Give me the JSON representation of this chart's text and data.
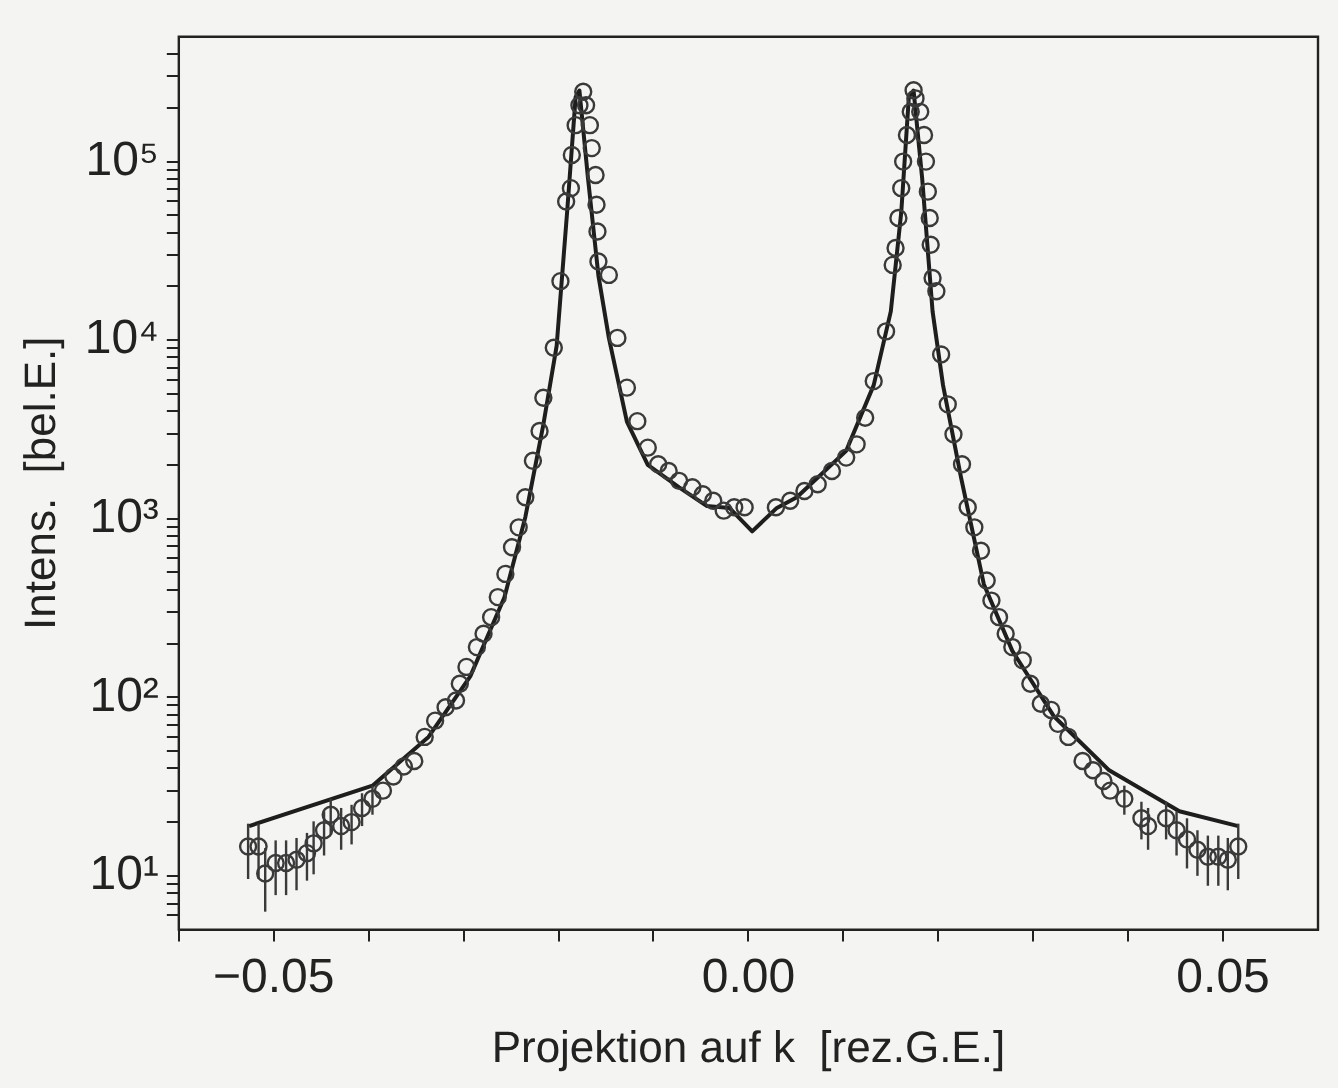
{
  "chart_data": {
    "type": "scatter",
    "xlabel": "Projektion auf k  [rez.G.E.]",
    "ylabel": "Intens.  [bel.E.]",
    "log": "y",
    "grid": false,
    "legend": false,
    "xlim": [
      -0.06,
      0.06
    ],
    "ylim": [
      5,
      500000
    ],
    "xticks": [
      {
        "value": -0.06,
        "label": null
      },
      {
        "value": -0.05,
        "label": "−0.05"
      },
      {
        "value": -0.04,
        "label": null
      },
      {
        "value": -0.03,
        "label": null
      },
      {
        "value": -0.02,
        "label": null
      },
      {
        "value": -0.01,
        "label": null
      },
      {
        "value": 0,
        "label": "0.00"
      },
      {
        "value": 0.01,
        "label": null
      },
      {
        "value": 0.02,
        "label": null
      },
      {
        "value": 0.03,
        "label": null
      },
      {
        "value": 0.04,
        "label": null
      },
      {
        "value": 0.05,
        "label": "0.05"
      }
    ],
    "yticks": [
      {
        "value": 6,
        "label": null
      },
      {
        "value": 7,
        "label": null
      },
      {
        "value": 8,
        "label": null
      },
      {
        "value": 9,
        "label": null
      },
      {
        "value": 10,
        "label": "10¹"
      },
      {
        "value": 20,
        "label": null
      },
      {
        "value": 30,
        "label": null
      },
      {
        "value": 40,
        "label": null
      },
      {
        "value": 50,
        "label": null
      },
      {
        "value": 60,
        "label": null
      },
      {
        "value": 70,
        "label": null
      },
      {
        "value": 80,
        "label": null
      },
      {
        "value": 90,
        "label": null
      },
      {
        "value": 100,
        "label": "10²"
      },
      {
        "value": 200,
        "label": null
      },
      {
        "value": 300,
        "label": null
      },
      {
        "value": 400,
        "label": null
      },
      {
        "value": 500,
        "label": null
      },
      {
        "value": 600,
        "label": null
      },
      {
        "value": 700,
        "label": null
      },
      {
        "value": 800,
        "label": null
      },
      {
        "value": 900,
        "label": null
      },
      {
        "value": 1000,
        "label": "10³"
      },
      {
        "value": 2000,
        "label": null
      },
      {
        "value": 3000,
        "label": null
      },
      {
        "value": 4000,
        "label": null
      },
      {
        "value": 5000,
        "label": null
      },
      {
        "value": 6000,
        "label": null
      },
      {
        "value": 7000,
        "label": null
      },
      {
        "value": 8000,
        "label": null
      },
      {
        "value": 9000,
        "label": null
      },
      {
        "value": 10000,
        "label": "10⁴"
      },
      {
        "value": 20000,
        "label": null
      },
      {
        "value": 30000,
        "label": null
      },
      {
        "value": 40000,
        "label": null
      },
      {
        "value": 50000,
        "label": null
      },
      {
        "value": 60000,
        "label": null
      },
      {
        "value": 70000,
        "label": null
      },
      {
        "value": 80000,
        "label": null
      },
      {
        "value": 90000,
        "label": null
      },
      {
        "value": 100000,
        "label": "10⁵"
      },
      {
        "value": 200000,
        "label": null
      },
      {
        "value": 300000,
        "label": null
      },
      {
        "value": 400000,
        "label": null
      }
    ],
    "series": [
      {
        "marker": "circle",
        "color": "#3a3a3a",
        "x": [
          -0.0527,
          -0.0516,
          -0.0509,
          -0.0498,
          -0.0487,
          -0.0476,
          -0.0465,
          -0.0458,
          -0.0447,
          -0.044,
          -0.0429,
          -0.0418,
          -0.0407,
          -0.0396,
          -0.0385,
          -0.0374,
          -0.0363,
          -0.0352,
          -0.0341,
          -0.033,
          -0.0319,
          -0.0308,
          -0.0304,
          -0.0297,
          -0.0286,
          -0.0279,
          -0.0271,
          -0.0264,
          -0.0256,
          -0.0249,
          -0.0242,
          -0.0235,
          -0.0227,
          -0.022,
          -0.0216,
          -0.0205,
          -0.0198,
          -0.0192,
          -0.0187,
          -0.0186,
          -0.0182,
          -0.0178,
          -0.0174,
          -0.0171,
          -0.0167,
          -0.0165,
          -0.0161,
          -0.016,
          -0.0159,
          -0.0158,
          -0.0147,
          -0.0138,
          -0.0128,
          -0.0117,
          -0.0106,
          -0.0095,
          -0.0084,
          -0.0073,
          -0.0059,
          -0.0048,
          -0.0037,
          -0.0026,
          -0.0015,
          -0.0004,
          0.0029,
          0.0044,
          0.0059,
          0.0073,
          0.0088,
          0.0103,
          0.0114,
          0.0123,
          0.0132,
          0.0145,
          0.0152,
          0.0155,
          0.0158,
          0.0161,
          0.0163,
          0.0167,
          0.0171,
          0.0174,
          0.0176,
          0.0181,
          0.0185,
          0.0187,
          0.0189,
          0.0191,
          0.0192,
          0.0194,
          0.0198,
          0.0203,
          0.021,
          0.0216,
          0.0225,
          0.0231,
          0.0238,
          0.0245,
          0.0251,
          0.0256,
          0.0264,
          0.0271,
          0.0278,
          0.0289,
          0.0297,
          0.0308,
          0.0319,
          0.0326,
          0.0337,
          0.0352,
          0.0363,
          0.0374,
          0.0381,
          0.0396,
          0.0414,
          0.0421,
          0.044,
          0.0451,
          0.0462,
          0.0473,
          0.0484,
          0.0495,
          0.0505,
          0.0516
        ],
        "values": [
          14.6,
          14.6,
          10.3,
          11.8,
          11.8,
          12.3,
          13.4,
          15.2,
          18,
          22,
          19,
          20,
          24,
          27,
          30,
          36,
          41,
          44,
          60,
          74,
          88,
          96,
          119,
          148,
          191,
          227,
          281,
          364,
          491,
          692,
          895,
          1320,
          2110,
          3100,
          4760,
          9070,
          21400,
          59800,
          71000,
          109000,
          160000,
          207000,
          246000,
          207000,
          160000,
          119000,
          84100,
          57300,
          40600,
          27600,
          23200,
          10300,
          5420,
          3520,
          2500,
          2020,
          1850,
          1630,
          1500,
          1370,
          1260,
          1110,
          1160,
          1160,
          1160,
          1260,
          1430,
          1560,
          1850,
          2200,
          2610,
          3680,
          5900,
          11200,
          26400,
          32800,
          48300,
          71000,
          100000,
          141000,
          190000,
          251000,
          226000,
          190000,
          141000,
          100000,
          67900,
          48300,
          34200,
          22300,
          18800,
          8320,
          4370,
          2970,
          2020,
          1160,
          895,
          662,
          451,
          348,
          281,
          227,
          191,
          161,
          119,
          92,
          85,
          71,
          60,
          44,
          39,
          34,
          30,
          27,
          21,
          19,
          21,
          18,
          16,
          14,
          12.8,
          12.8,
          12.3,
          14.6
        ],
        "errors": [
          5,
          5,
          4,
          4,
          4,
          4,
          4,
          5,
          5,
          5,
          5,
          5,
          5,
          5,
          null,
          null,
          null,
          null,
          null,
          null,
          null,
          null,
          null,
          null,
          null,
          null,
          null,
          null,
          null,
          null,
          null,
          null,
          null,
          null,
          null,
          null,
          null,
          null,
          null,
          null,
          null,
          null,
          null,
          null,
          null,
          null,
          null,
          null,
          null,
          null,
          null,
          null,
          null,
          null,
          null,
          null,
          null,
          null,
          null,
          null,
          null,
          null,
          null,
          null,
          null,
          null,
          null,
          null,
          null,
          null,
          null,
          null,
          null,
          null,
          null,
          null,
          null,
          null,
          null,
          null,
          null,
          null,
          null,
          null,
          null,
          null,
          null,
          null,
          null,
          null,
          null,
          null,
          null,
          null,
          null,
          null,
          null,
          null,
          null,
          null,
          null,
          null,
          null,
          null,
          null,
          null,
          null,
          null,
          null,
          null,
          null,
          null,
          null,
          5,
          5,
          5,
          5,
          5,
          5,
          4,
          4,
          4,
          4,
          5
        ]
      },
      {
        "type": "line",
        "line_style": "solid",
        "marker": "none",
        "color": "#1e1e1e",
        "x": [
          -0.0526,
          -0.0396,
          -0.0337,
          -0.0293,
          -0.0257,
          -0.0235,
          -0.0216,
          -0.0202,
          -0.0191,
          -0.0182,
          -0.0178,
          -0.0169,
          -0.0158,
          -0.0147,
          -0.0128,
          -0.0106,
          -0.0073,
          -0.0044,
          -0.002,
          0.0004,
          0.003,
          0.0051,
          0.0103,
          0.0132,
          0.015,
          0.0161,
          0.0169,
          0.0174,
          0.0183,
          0.0194,
          0.0205,
          0.0224,
          0.0248,
          0.0278,
          0.0322,
          0.038,
          0.0454,
          0.0516
        ],
        "values": [
          19,
          32,
          60,
          131,
          363,
          1020,
          3370,
          9300,
          52000,
          230000,
          250000,
          81000,
          23000,
          10300,
          3500,
          2000,
          1500,
          1180,
          1150,
          850,
          1150,
          1320,
          2400,
          5600,
          14500,
          52000,
          230000,
          250000,
          81000,
          14500,
          5600,
          1700,
          430,
          182,
          78,
          39,
          23,
          19
        ]
      }
    ]
  }
}
